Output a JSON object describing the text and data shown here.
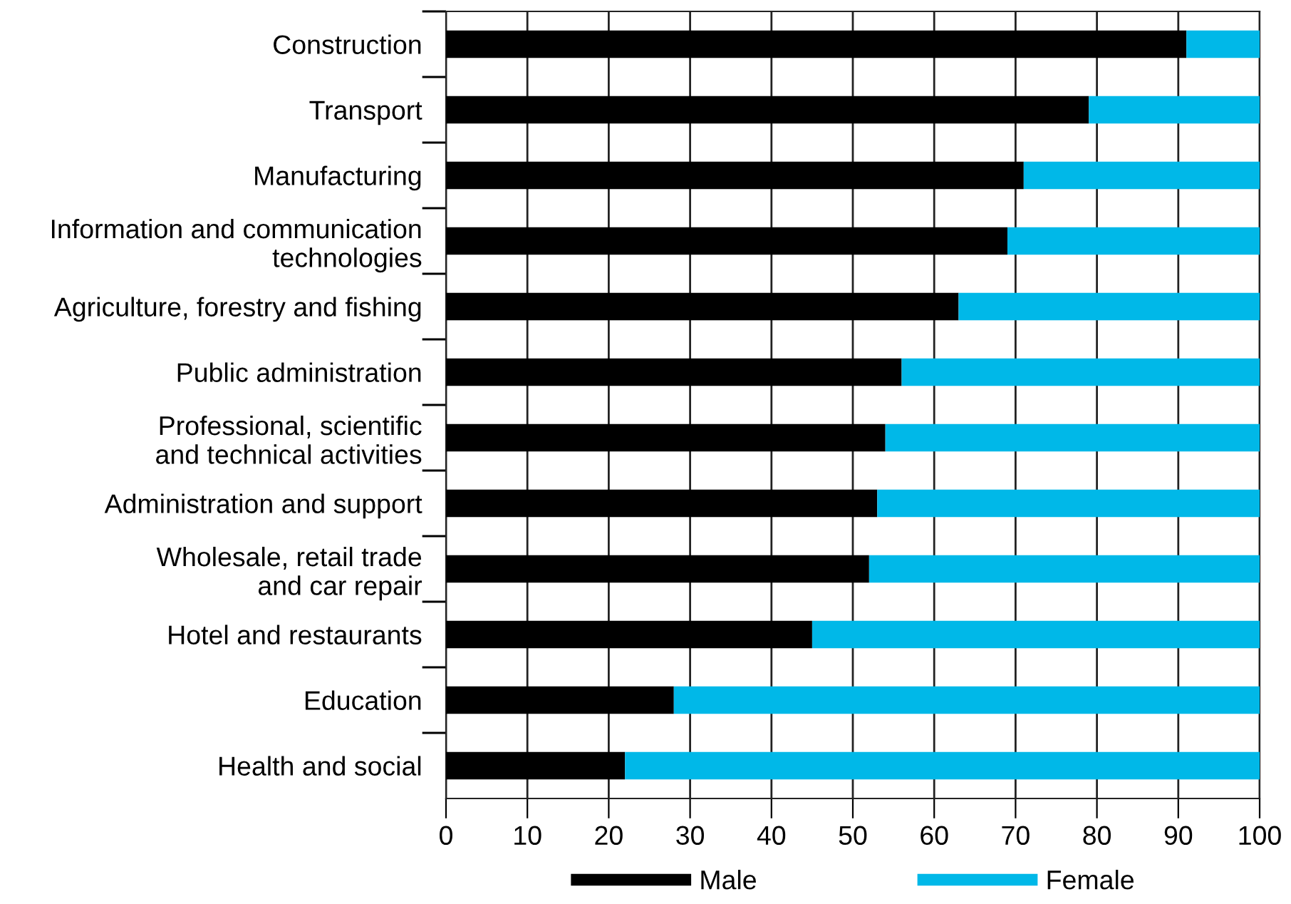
{
  "chart_data": {
    "type": "bar",
    "orientation": "horizontal",
    "stacked": true,
    "categories": [
      "Construction",
      "Transport",
      "Manufacturing",
      "Information and communication\ntechnologies",
      "Agriculture, forestry and fishing",
      "Public administration",
      "Professional, scientific\nand technical activities",
      "Administration and support",
      "Wholesale, retail trade\nand car repair",
      "Hotel and restaurants",
      "Education",
      "Health and social"
    ],
    "series": [
      {
        "name": "Male",
        "color": "#000000",
        "values": [
          91,
          79,
          71,
          69,
          63,
          56,
          54,
          53,
          52,
          45,
          28,
          22
        ]
      },
      {
        "name": "Female",
        "color": "#00b8e8",
        "values": [
          9,
          21,
          29,
          31,
          37,
          44,
          46,
          47,
          48,
          55,
          72,
          78
        ]
      }
    ],
    "xlim": [
      0,
      100
    ],
    "xticks": [
      0,
      10,
      20,
      30,
      40,
      50,
      60,
      70,
      80,
      90,
      100
    ],
    "grid": "x",
    "legend": "bottom"
  }
}
